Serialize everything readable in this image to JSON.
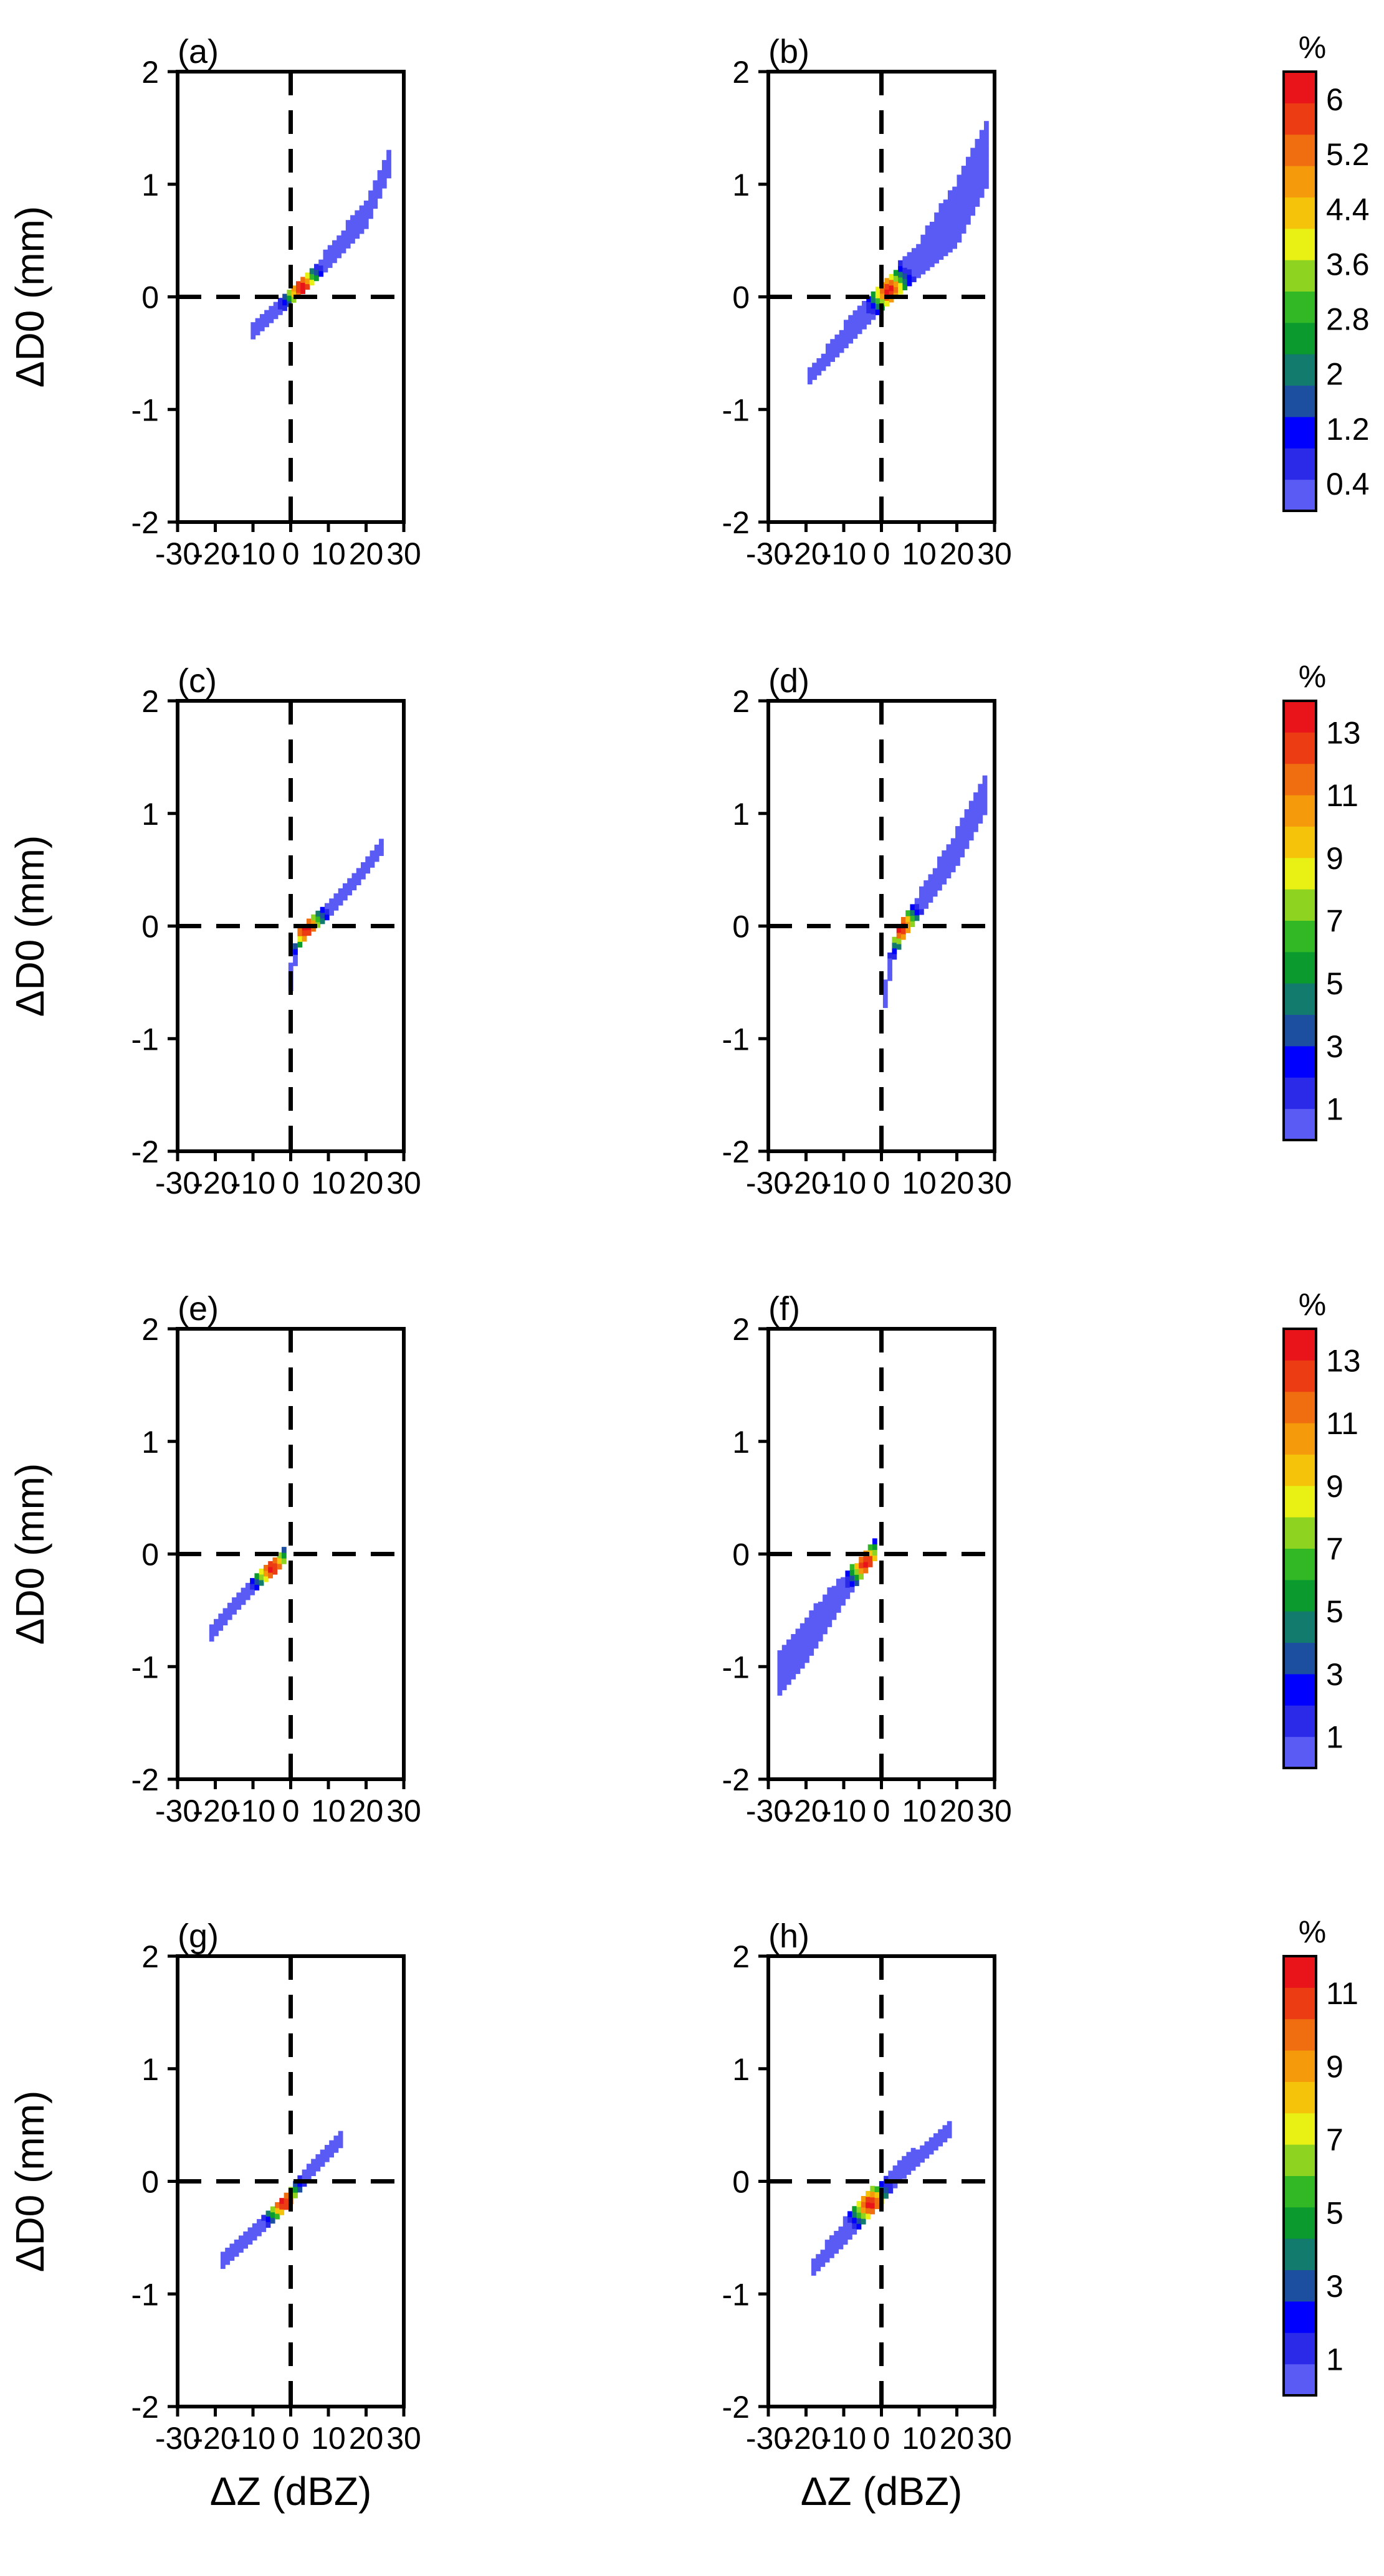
{
  "chart_data": {
    "type": "heatmap",
    "xlabel": "ΔZ (dBZ)",
    "ylabel": "ΔD0 (mm)",
    "xlim": [
      -30,
      30
    ],
    "ylim": [
      -2,
      2
    ],
    "xticks": [
      -30,
      -20,
      -10,
      0,
      10,
      20,
      30
    ],
    "yticks": [
      -2,
      -1,
      0,
      1,
      2
    ],
    "colorbar_unit": "%",
    "color_scale": [
      "#5a5af5",
      "#2a2ae8",
      "#0000ff",
      "#1c4fa0",
      "#137a6e",
      "#0a9a2e",
      "#33b825",
      "#8fd321",
      "#e8f014",
      "#f5c40a",
      "#f59a0a",
      "#f06e10",
      "#ec3c14",
      "#e8141a"
    ],
    "rows": [
      {
        "colorbar_ticks": [
          "6",
          "5.2",
          "4.4",
          "3.6",
          "2.8",
          "2",
          "1.2",
          "0.4"
        ],
        "colorbar_max": 6.4,
        "panels": [
          {
            "label": "(a)",
            "line": [
              [
                -10,
                -0.3
              ],
              [
                0,
                0
              ],
              [
                10,
                0.35
              ],
              [
                20,
                0.75
              ],
              [
                26,
                1.2
              ]
            ],
            "spread": [
              0.05,
              0.05,
              0.08,
              0.12,
              0.12
            ],
            "peak": [
              3,
              0.08
            ],
            "peak_value": 6.2
          },
          {
            "label": "(b)",
            "line": [
              [
                -19,
                -0.7
              ],
              [
                -10,
                -0.35
              ],
              [
                0,
                0
              ],
              [
                10,
                0.35
              ],
              [
                20,
                0.75
              ],
              [
                28,
                1.3
              ]
            ],
            "spread": [
              0.05,
              0.1,
              0.1,
              0.15,
              0.28,
              0.3
            ],
            "peak": [
              2,
              0.06
            ],
            "peak_value": 6.2
          }
        ]
      },
      {
        "colorbar_ticks": [
          "13",
          "11",
          "9",
          "7",
          "5",
          "3",
          "1"
        ],
        "colorbar_max": 14,
        "panels": [
          {
            "label": "(c)",
            "line": [
              [
                0,
                -0.45
              ],
              [
                2,
                -0.1
              ],
              [
                5,
                0
              ],
              [
                10,
                0.15
              ],
              [
                18,
                0.45
              ],
              [
                24,
                0.7
              ]
            ],
            "spread": [
              0.1,
              0.08,
              0.05,
              0.06,
              0.06,
              0.05
            ],
            "peak": [
              4,
              -0.02
            ],
            "peak_value": 13.5
          },
          {
            "label": "(d)",
            "line": [
              [
                1,
                -0.6
              ],
              [
                3,
                -0.2
              ],
              [
                6,
                0
              ],
              [
                10,
                0.2
              ],
              [
                20,
                0.7
              ],
              [
                28,
                1.2
              ]
            ],
            "spread": [
              0.1,
              0.1,
              0.08,
              0.1,
              0.15,
              0.15
            ],
            "peak": [
              5,
              -0.01
            ],
            "peak_value": 13.5
          }
        ]
      },
      {
        "colorbar_ticks": [
          "13",
          "11",
          "9",
          "7",
          "5",
          "3",
          "1"
        ],
        "colorbar_max": 14,
        "panels": [
          {
            "label": "(e)",
            "line": [
              [
                -21,
                -0.7
              ],
              [
                -15,
                -0.45
              ],
              [
                -8,
                -0.2
              ],
              [
                -4,
                -0.1
              ],
              [
                -1,
                0.05
              ]
            ],
            "spread": [
              0.05,
              0.06,
              0.06,
              0.05,
              0.08
            ],
            "peak": [
              -5,
              -0.12
            ],
            "peak_value": 13.5
          },
          {
            "label": "(f)",
            "line": [
              [
                -27,
                -1.05
              ],
              [
                -20,
                -0.75
              ],
              [
                -10,
                -0.3
              ],
              [
                -5,
                -0.1
              ],
              [
                -1,
                0.1
              ]
            ],
            "spread": [
              0.18,
              0.2,
              0.12,
              0.08,
              0.1
            ],
            "peak": [
              -4,
              -0.08
            ],
            "peak_value": 13.5
          }
        ]
      },
      {
        "colorbar_ticks": [
          "11",
          "9",
          "7",
          "5",
          "3",
          "1"
        ],
        "colorbar_max": 12,
        "panels": [
          {
            "label": "(g)",
            "line": [
              [
                -18,
                -0.7
              ],
              [
                -10,
                -0.45
              ],
              [
                -2,
                -0.2
              ],
              [
                5,
                0.1
              ],
              [
                14,
                0.4
              ]
            ],
            "spread": [
              0.05,
              0.06,
              0.06,
              0.06,
              0.05
            ],
            "peak": [
              -2,
              -0.18
            ],
            "peak_value": 11.5
          },
          {
            "label": "(h)",
            "line": [
              [
                -18,
                -0.75
              ],
              [
                -10,
                -0.45
              ],
              [
                -2,
                -0.15
              ],
              [
                5,
                0.1
              ],
              [
                19,
                0.5
              ]
            ],
            "spread": [
              0.06,
              0.1,
              0.1,
              0.08,
              0.06
            ],
            "peak": [
              -3,
              -0.2
            ],
            "peak_value": 11.5
          }
        ]
      }
    ]
  }
}
